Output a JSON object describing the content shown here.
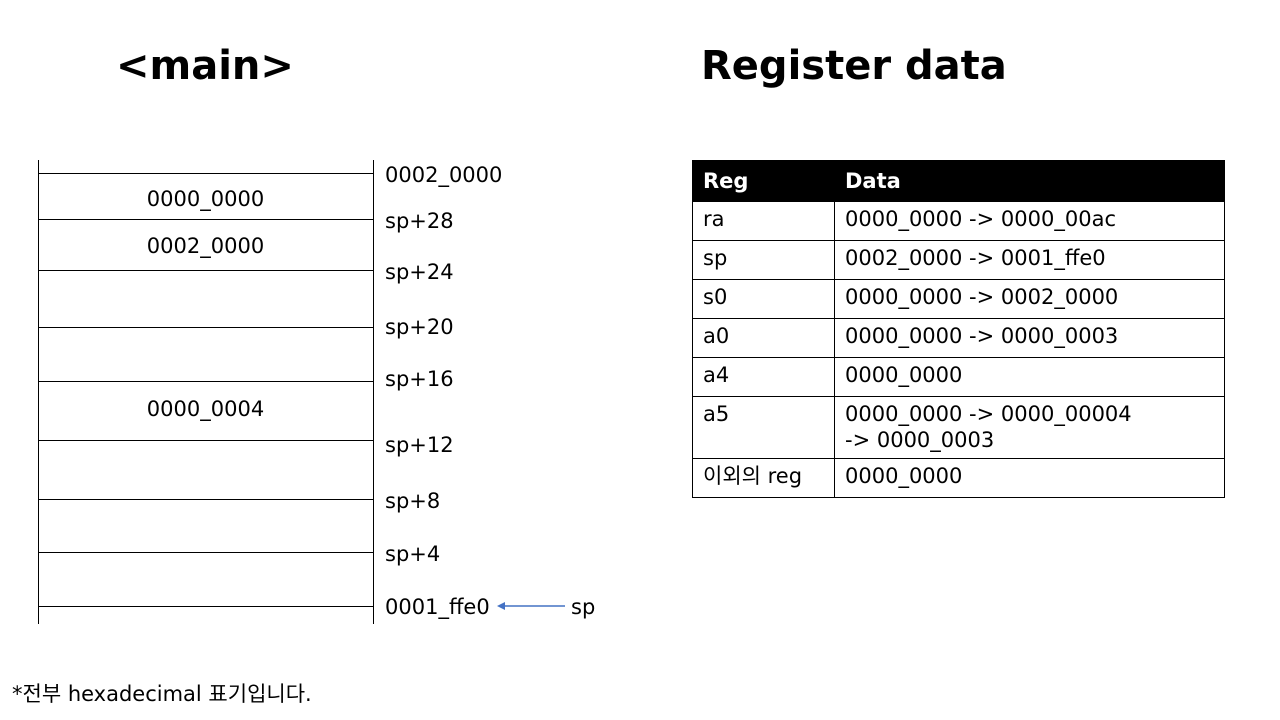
{
  "stack": {
    "title": "<main>",
    "cells": [
      {
        "value": "0000_0000",
        "addr": "sp+28"
      },
      {
        "value": "0002_0000",
        "addr": "sp+24"
      },
      {
        "value": "",
        "addr": "sp+20"
      },
      {
        "value": "",
        "addr": "sp+16"
      },
      {
        "value": "0000_0004",
        "addr": "sp+12"
      },
      {
        "value": "",
        "addr": "sp+8"
      },
      {
        "value": "",
        "addr": "sp+4"
      },
      {
        "value": "",
        "addr": "0001_ffe0"
      }
    ],
    "top_addr": "0002_0000",
    "sp_label": "sp"
  },
  "registers": {
    "title": "Register data",
    "headers": [
      "Reg",
      "Data"
    ],
    "rows": [
      {
        "reg": "ra",
        "data": [
          "0000_0000  ->  0000_00ac"
        ]
      },
      {
        "reg": "sp",
        "data": [
          "0002_0000  ->  0001_ffe0"
        ]
      },
      {
        "reg": "s0",
        "data": [
          "0000_0000  ->  0002_0000"
        ]
      },
      {
        "reg": "a0",
        "data": [
          "0000_0000  ->  0000_0003"
        ]
      },
      {
        "reg": "a4",
        "data": [
          "0000_0000"
        ]
      },
      {
        "reg": "a5",
        "data": [
          "0000_0000  ->  0000_00004",
          "->  0000_0003"
        ]
      },
      {
        "reg": "이외의 reg",
        "data": [
          "0000_0000"
        ]
      }
    ]
  },
  "footnote": "*전부  hexadecimal  표기입니다."
}
